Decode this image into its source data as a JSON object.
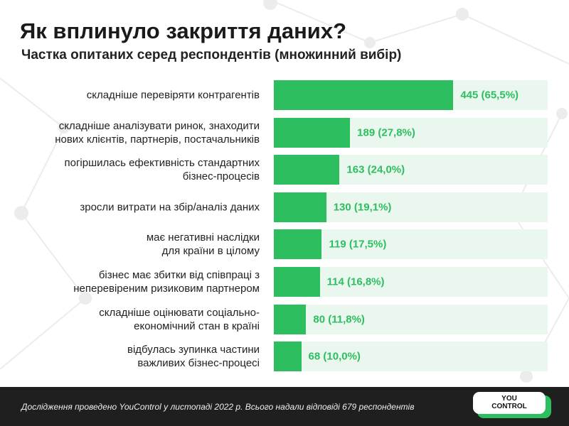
{
  "chart_data": {
    "type": "hbar",
    "title": "Як вплинуло закриття даних?",
    "subtitle": "Частка опитаних серед респондентів (множинний вибір)",
    "categories": [
      "складніше перевіряти контрагентів",
      "складніше аналізувати ринок, знаходити\nнових клієнтів, партнерів, постачальників",
      "погіршилась ефективність стандартних\nбізнес-процесів",
      "зросли витрати на збір/аналіз даних",
      "має негативні наслідки\nдля країни в цілому",
      "бізнес має збитки від співпраці з\nнеперевіреним ризиковим партнером",
      "складніше оцінювати соціально-\nекономічний стан в країні",
      "відбулась зупинка частини\nважливих бізнес-процесі"
    ],
    "values": [
      445,
      189,
      163,
      130,
      119,
      114,
      80,
      68
    ],
    "value_labels": [
      "445 (65,5%)",
      "189 (27,8%)",
      "163 (24,0%)",
      "130 (19,1%)",
      "119 (17,5%)",
      "114 (16,8%)",
      "80 (11,8%)",
      "68 (10,0%)"
    ],
    "xlim": [
      0,
      679
    ],
    "color": "#2dbe60",
    "track_color": "#e9f7ee",
    "footnote": "Дослідження проведено YouControl у листопаді 2022 р. Всього надали відповіді 679 респондентів",
    "logo": [
      "YOU",
      "CONTROL"
    ]
  }
}
